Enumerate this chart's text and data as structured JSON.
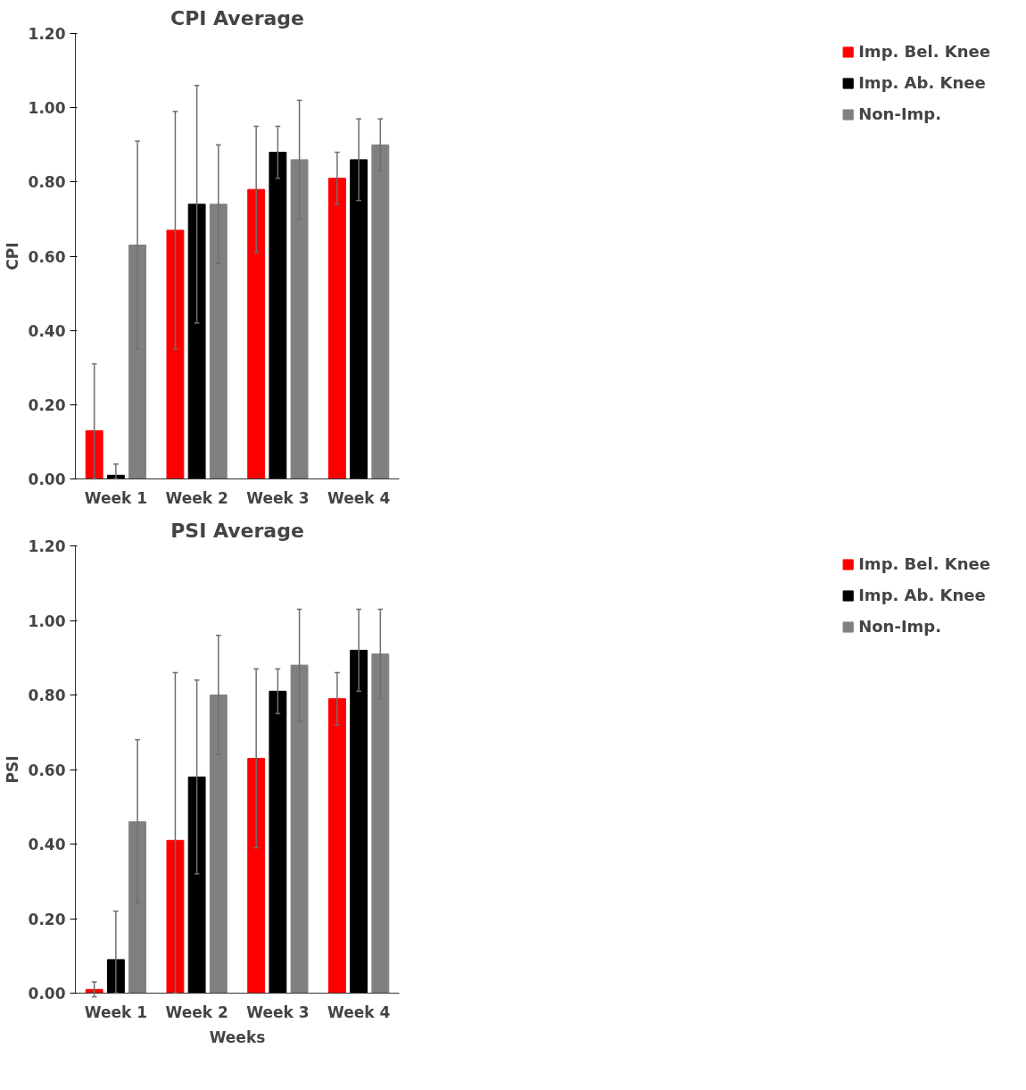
{
  "chart_data": [
    {
      "type": "bar",
      "title": "CPI Average",
      "ylabel": "CPI",
      "categories": [
        "Week 1",
        "Week 2",
        "Week 3",
        "Week 4"
      ],
      "ylim": [
        0,
        1.2
      ],
      "yticks": [
        {
          "value": 0,
          "label": "0.00"
        },
        {
          "value": 0.2,
          "label": "0.20"
        },
        {
          "value": 0.4,
          "label": "0.40"
        },
        {
          "value": 0.6,
          "label": "0.60"
        },
        {
          "value": 0.8,
          "label": "0.80"
        },
        {
          "value": 1.0,
          "label": "1.00"
        },
        {
          "value": 1.2,
          "label": "1.20"
        }
      ],
      "grid": false,
      "legend": "right",
      "series": [
        {
          "name": "Imp. Bel. Knee",
          "color": "#ff0000",
          "values": [
            0.13,
            0.67,
            0.78,
            0.81
          ],
          "errors": [
            [
              0.0,
              0.31
            ],
            0.32,
            0.17,
            0.07
          ]
        },
        {
          "name": "Imp. Ab. Knee",
          "color": "#000000",
          "values": [
            0.01,
            0.74,
            0.88,
            0.86
          ],
          "errors": [
            [
              0.0,
              0.04
            ],
            0.32,
            0.07,
            0.11
          ]
        },
        {
          "name": "Non-Imp.",
          "color": "#808080",
          "values": [
            0.63,
            0.74,
            0.86,
            0.9
          ],
          "errors": [
            0.28,
            0.16,
            0.16,
            0.07
          ]
        }
      ]
    },
    {
      "type": "bar",
      "title": "PSI Average",
      "ylabel": "PSI",
      "xlabel": "Weeks",
      "categories": [
        "Week 1",
        "Week 2",
        "Week 3",
        "Week 4"
      ],
      "ylim": [
        0,
        1.2
      ],
      "yticks": [
        {
          "value": 0,
          "label": "0.00"
        },
        {
          "value": 0.2,
          "label": "0.20"
        },
        {
          "value": 0.4,
          "label": "0.40"
        },
        {
          "value": 0.6,
          "label": "0.60"
        },
        {
          "value": 0.8,
          "label": "0.80"
        },
        {
          "value": 1.0,
          "label": "1.00"
        },
        {
          "value": 1.2,
          "label": "1.20"
        }
      ],
      "grid": false,
      "legend": "right",
      "series": [
        {
          "name": "Imp. Bel. Knee",
          "color": "#ff0000",
          "values": [
            0.01,
            0.41,
            0.63,
            0.79
          ],
          "errors": [
            0.02,
            [
              0.0,
              0.86
            ],
            0.24,
            0.07
          ]
        },
        {
          "name": "Imp. Ab. Knee",
          "color": "#000000",
          "values": [
            0.09,
            0.58,
            0.81,
            0.92
          ],
          "errors": [
            [
              0.0,
              0.22
            ],
            0.26,
            0.06,
            0.11
          ]
        },
        {
          "name": "Non-Imp.",
          "color": "#808080",
          "values": [
            0.46,
            0.8,
            0.88,
            0.91
          ],
          "errors": [
            0.22,
            0.16,
            0.15,
            0.12
          ]
        }
      ]
    }
  ]
}
